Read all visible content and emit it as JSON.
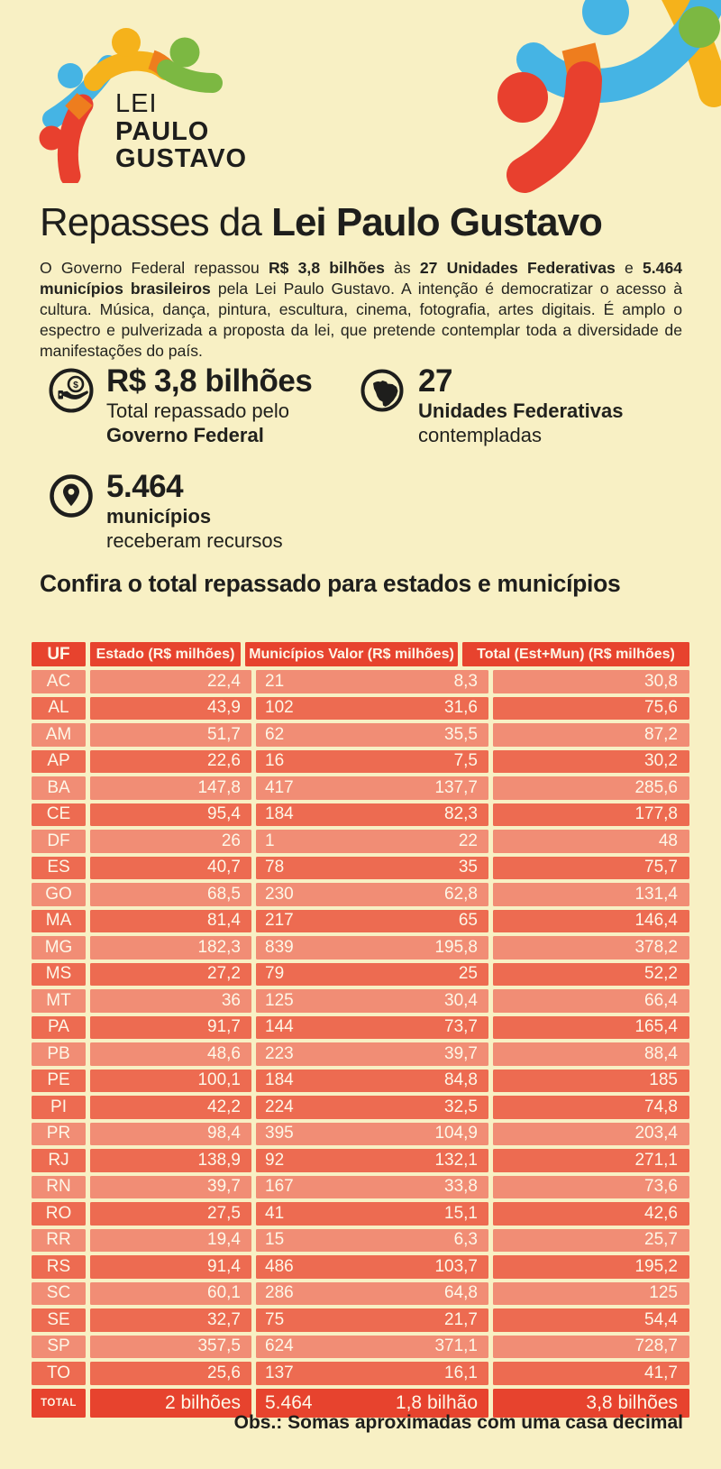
{
  "logo": {
    "line1": "LEI",
    "line2": "PAULO",
    "line3": "GUSTAVO"
  },
  "title": {
    "regular": "Repasses da ",
    "bold": "Lei Paulo Gustavo"
  },
  "intro": {
    "segments": [
      {
        "text": "O Governo Federal repassou ",
        "bold": false
      },
      {
        "text": "R$ 3,8 bilhões",
        "bold": true
      },
      {
        "text": " às ",
        "bold": false
      },
      {
        "text": "27 Unidades Federativas",
        "bold": true
      },
      {
        "text": " e ",
        "bold": false
      },
      {
        "text": "5.464 municípios brasileiros",
        "bold": true
      },
      {
        "text": " pela Lei Paulo Gustavo. A intenção é democratizar o acesso à cultura. Música, dança, pintura, escultura, cinema, fotografia, artes digitais. É amplo o espectro e pulverizada a proposta da lei, que pretende contemplar toda a diversidade de manifestações do país.",
        "bold": false
      }
    ]
  },
  "stats": [
    {
      "icon": "hand-coin-icon",
      "value": "R$ 3,8 bilhões",
      "line1": "Total repassado pelo",
      "line2": "Governo Federal"
    },
    {
      "icon": "brazil-map-icon",
      "value": "27",
      "line1": "Unidades Federativas",
      "line2": "contempladas"
    },
    {
      "icon": "map-pin-icon",
      "value": "5.464",
      "line1": "municípios",
      "line2": "receberam recursos"
    }
  ],
  "table_heading": "Confira o total repassado para estados e municípios",
  "table": {
    "headers": [
      "UF",
      "Estado (R$ milhões)",
      "Municípios Valor (R$ milhões)",
      "Total (Est+Mun)  (R$ milhões)"
    ],
    "rows": [
      {
        "uf": "AC",
        "estado": "22,4",
        "municipios": "21",
        "valor": "8,3",
        "total": "30,8"
      },
      {
        "uf": "AL",
        "estado": "43,9",
        "municipios": "102",
        "valor": "31,6",
        "total": "75,6"
      },
      {
        "uf": "AM",
        "estado": "51,7",
        "municipios": "62",
        "valor": "35,5",
        "total": "87,2"
      },
      {
        "uf": "AP",
        "estado": "22,6",
        "municipios": "16",
        "valor": "7,5",
        "total": "30,2"
      },
      {
        "uf": "BA",
        "estado": "147,8",
        "municipios": "417",
        "valor": "137,7",
        "total": "285,6"
      },
      {
        "uf": "CE",
        "estado": "95,4",
        "municipios": "184",
        "valor": "82,3",
        "total": "177,8"
      },
      {
        "uf": "DF",
        "estado": "26",
        "municipios": "1",
        "valor": "22",
        "total": "48"
      },
      {
        "uf": "ES",
        "estado": "40,7",
        "municipios": "78",
        "valor": "35",
        "total": "75,7"
      },
      {
        "uf": "GO",
        "estado": "68,5",
        "municipios": "230",
        "valor": "62,8",
        "total": "131,4"
      },
      {
        "uf": "MA",
        "estado": "81,4",
        "municipios": "217",
        "valor": "65",
        "total": "146,4"
      },
      {
        "uf": "MG",
        "estado": "182,3",
        "municipios": "839",
        "valor": "195,8",
        "total": "378,2"
      },
      {
        "uf": "MS",
        "estado": "27,2",
        "municipios": "79",
        "valor": "25",
        "total": "52,2"
      },
      {
        "uf": "MT",
        "estado": "36",
        "municipios": "125",
        "valor": "30,4",
        "total": "66,4"
      },
      {
        "uf": "PA",
        "estado": "91,7",
        "municipios": "144",
        "valor": "73,7",
        "total": "165,4"
      },
      {
        "uf": "PB",
        "estado": "48,6",
        "municipios": "223",
        "valor": "39,7",
        "total": "88,4"
      },
      {
        "uf": "PE",
        "estado": "100,1",
        "municipios": "184",
        "valor": "84,8",
        "total": "185"
      },
      {
        "uf": "PI",
        "estado": "42,2",
        "municipios": "224",
        "valor": "32,5",
        "total": "74,8"
      },
      {
        "uf": "PR",
        "estado": "98,4",
        "municipios": "395",
        "valor": "104,9",
        "total": "203,4"
      },
      {
        "uf": "RJ",
        "estado": "138,9",
        "municipios": "92",
        "valor": "132,1",
        "total": "271,1"
      },
      {
        "uf": "RN",
        "estado": "39,7",
        "municipios": "167",
        "valor": "33,8",
        "total": "73,6"
      },
      {
        "uf": "RO",
        "estado": "27,5",
        "municipios": "41",
        "valor": "15,1",
        "total": "42,6"
      },
      {
        "uf": "RR",
        "estado": "19,4",
        "municipios": "15",
        "valor": "6,3",
        "total": "25,7"
      },
      {
        "uf": "RS",
        "estado": "91,4",
        "municipios": "486",
        "valor": "103,7",
        "total": "195,2"
      },
      {
        "uf": "SC",
        "estado": "60,1",
        "municipios": "286",
        "valor": "64,8",
        "total": "125"
      },
      {
        "uf": "SE",
        "estado": "32,7",
        "municipios": "75",
        "valor": "21,7",
        "total": "54,4"
      },
      {
        "uf": "SP",
        "estado": "357,5",
        "municipios": "624",
        "valor": "371,1",
        "total": "728,7"
      },
      {
        "uf": "TO",
        "estado": "25,6",
        "municipios": "137",
        "valor": "16,1",
        "total": "41,7"
      }
    ],
    "total_row": {
      "uf": "TOTAL",
      "estado": "2 bilhões",
      "municipios": "5.464",
      "valor": "1,8 bilhão",
      "total": "3,8 bilhões"
    }
  },
  "footnote": "Obs.: Somas aproximadas com uma casa decimal",
  "colors": {
    "background": "#f8f0c4",
    "header_red": "#e7432e",
    "row_dark": "#ed6b51",
    "row_light": "#f18d75",
    "table_text": "#fdf7e7",
    "ink": "#1e1e1c",
    "blue": "#45b4e4",
    "yellow": "#f5b21b",
    "green": "#7cb842",
    "red": "#e8402e",
    "orange": "#ee7d1e"
  }
}
